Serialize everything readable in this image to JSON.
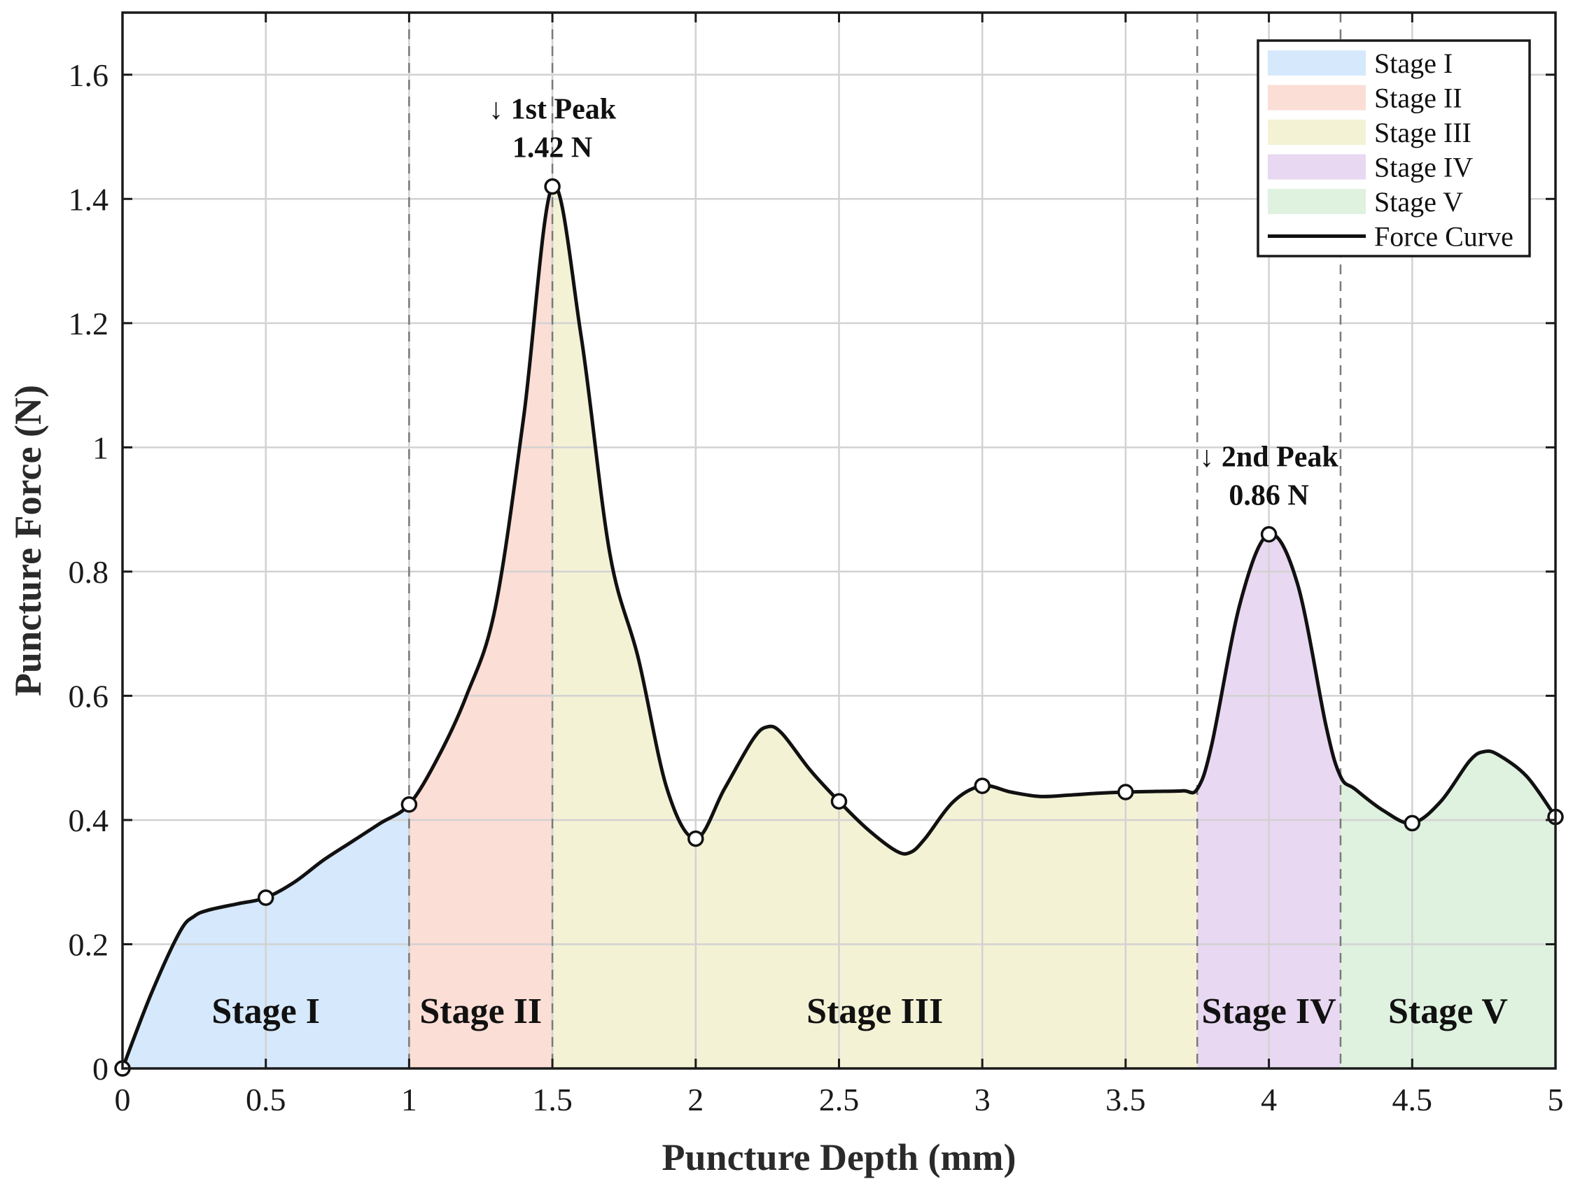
{
  "chart_data": {
    "type": "area",
    "xlabel": "Puncture Depth (mm)",
    "ylabel": "Puncture Force (N)",
    "xlim": [
      0,
      5
    ],
    "ylim": [
      0,
      1.7
    ],
    "xticks": [
      0,
      0.5,
      1,
      1.5,
      2,
      2.5,
      3,
      3.5,
      4,
      4.5,
      5
    ],
    "xtick_labels": [
      "0",
      "0.5",
      "1",
      "1.5",
      "2",
      "2.5",
      "3",
      "3.5",
      "4",
      "4.5",
      "5"
    ],
    "yticks": [
      0,
      0.2,
      0.4,
      0.6,
      0.8,
      1.0,
      1.2,
      1.4,
      1.6
    ],
    "ytick_labels": [
      "0",
      "0.2",
      "0.4",
      "0.6",
      "0.8",
      "1",
      "1.2",
      "1.4",
      "1.6"
    ],
    "grid": true,
    "legend_position": "top-right",
    "series": [
      {
        "name": "Force Curve",
        "color": "#111111",
        "x": [
          0,
          0.1,
          0.2,
          0.25,
          0.3,
          0.4,
          0.5,
          0.6,
          0.7,
          0.8,
          0.9,
          1.0,
          1.1,
          1.2,
          1.3,
          1.4,
          1.5,
          1.6,
          1.7,
          1.8,
          1.9,
          2.0,
          2.1,
          2.2,
          2.25,
          2.3,
          2.4,
          2.5,
          2.6,
          2.7,
          2.75,
          2.8,
          2.9,
          3.0,
          3.1,
          3.2,
          3.3,
          3.4,
          3.5,
          3.6,
          3.7,
          3.75,
          3.8,
          3.9,
          4.0,
          4.1,
          4.2,
          4.25,
          4.3,
          4.4,
          4.5,
          4.6,
          4.7,
          4.75,
          4.8,
          4.9,
          5.0
        ],
        "y": [
          0.0,
          0.12,
          0.22,
          0.245,
          0.255,
          0.265,
          0.275,
          0.3,
          0.335,
          0.365,
          0.395,
          0.425,
          0.5,
          0.6,
          0.74,
          1.05,
          1.42,
          1.18,
          0.83,
          0.66,
          0.45,
          0.37,
          0.45,
          0.53,
          0.55,
          0.54,
          0.48,
          0.43,
          0.385,
          0.35,
          0.348,
          0.37,
          0.43,
          0.455,
          0.445,
          0.438,
          0.44,
          0.443,
          0.445,
          0.446,
          0.447,
          0.45,
          0.52,
          0.75,
          0.86,
          0.78,
          0.55,
          0.47,
          0.45,
          0.415,
          0.395,
          0.43,
          0.495,
          0.51,
          0.505,
          0.47,
          0.405
        ]
      }
    ],
    "markers": {
      "x": [
        0,
        0.5,
        1.0,
        1.5,
        2.0,
        2.5,
        3.0,
        3.5,
        4.0,
        4.5,
        5.0
      ],
      "y": [
        0.0,
        0.275,
        0.425,
        1.42,
        0.37,
        0.43,
        0.455,
        0.445,
        0.86,
        0.395,
        0.405
      ]
    },
    "stage_boundaries": [
      1.0,
      1.5,
      3.75,
      4.25
    ],
    "stages": [
      {
        "name": "Stage I",
        "x_start": 0,
        "x_end": 1.0,
        "color": "#d6e8fb",
        "label_x": 0.5
      },
      {
        "name": "Stage II",
        "x_start": 1.0,
        "x_end": 1.5,
        "color": "#fbded5",
        "label_x": 1.25
      },
      {
        "name": "Stage III",
        "x_start": 1.5,
        "x_end": 3.75,
        "color": "#f4f2d5",
        "label_x": 2.625
      },
      {
        "name": "Stage IV",
        "x_start": 3.75,
        "x_end": 4.25,
        "color": "#e9d8f2",
        "label_x": 4.0
      },
      {
        "name": "Stage V",
        "x_start": 4.25,
        "x_end": 5.0,
        "color": "#dff1df",
        "label_x": 4.625
      }
    ],
    "annotations": [
      {
        "line1": "↓ 1st Peak",
        "line2": "1.42 N",
        "x": 1.5,
        "y": 1.42
      },
      {
        "line1": "↓ 2nd Peak",
        "line2": "0.86 N",
        "x": 4.0,
        "y": 0.86
      }
    ],
    "legend": [
      "Stage I",
      "Stage II",
      "Stage III",
      "Stage IV",
      "Stage V",
      "Force Curve"
    ]
  }
}
